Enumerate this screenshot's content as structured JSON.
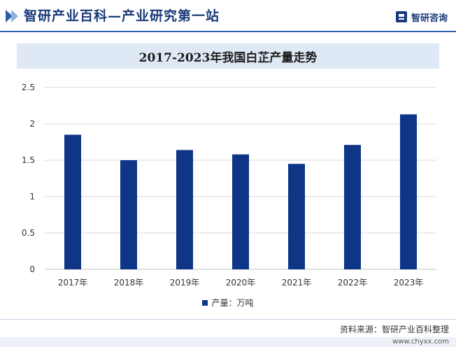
{
  "header": {
    "title": "智研产业百科—产业研究第一站",
    "brand": "智研咨询"
  },
  "chart_data": {
    "type": "bar",
    "title": "2017-2023年我国白芷产量走势",
    "categories": [
      "2017年",
      "2018年",
      "2019年",
      "2020年",
      "2021年",
      "2022年",
      "2023年"
    ],
    "series": [
      {
        "name": "产量：万吨",
        "values": [
          1.85,
          1.5,
          1.64,
          1.58,
          1.45,
          1.71,
          2.13
        ]
      }
    ],
    "ylim": [
      0,
      2.5
    ],
    "yticks": [
      "0",
      "0.5",
      "1",
      "1.5",
      "2",
      "2.5"
    ],
    "grid": true,
    "legend_position": "bottom",
    "color": "#0e3586"
  },
  "footer": {
    "source": "资料来源：智研产业百科整理",
    "site": "www.chyxx.com"
  }
}
